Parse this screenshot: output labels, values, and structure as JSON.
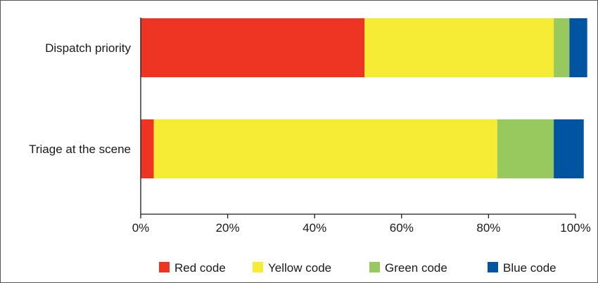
{
  "chart_data": {
    "type": "bar",
    "orientation": "horizontal",
    "stacked": true,
    "categories": [
      "Dispatch priority",
      "Triage at the scene"
    ],
    "series": [
      {
        "name": "Red code",
        "color": "#EE3524",
        "values": [
          51.5,
          3.0
        ]
      },
      {
        "name": "Yellow code",
        "color": "#F7EC35",
        "values": [
          43.5,
          79.0
        ]
      },
      {
        "name": "Green code",
        "color": "#97C95F",
        "values": [
          3.6,
          13.0
        ]
      },
      {
        "name": "Blue code",
        "color": "#0054A0",
        "values": [
          4.1,
          6.9
        ]
      }
    ],
    "x_ticks": [
      "0%",
      "20%",
      "40%",
      "60%",
      "80%",
      "100%"
    ],
    "xlim": [
      0,
      100
    ],
    "grid": false,
    "legend_position": "bottom"
  }
}
